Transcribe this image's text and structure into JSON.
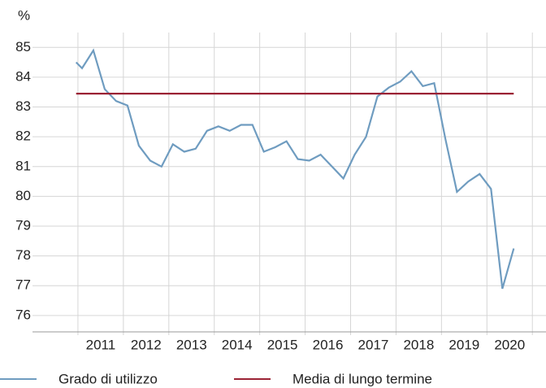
{
  "chart_data": {
    "type": "line",
    "y_unit": "%",
    "x": [
      2010.96,
      2011.09,
      2011.34,
      2011.59,
      2011.84,
      2012.09,
      2012.34,
      2012.59,
      2012.84,
      2013.09,
      2013.34,
      2013.59,
      2013.84,
      2014.09,
      2014.34,
      2014.59,
      2014.84,
      2015.09,
      2015.34,
      2015.59,
      2015.84,
      2016.09,
      2016.34,
      2016.59,
      2016.84,
      2017.09,
      2017.34,
      2017.59,
      2017.84,
      2018.09,
      2018.34,
      2018.59,
      2018.84,
      2019.09,
      2019.34,
      2019.59,
      2019.84,
      2020.09,
      2020.34,
      2020.59
    ],
    "series": [
      {
        "name": "Grado di utilizzo",
        "color": "#6f9cc0",
        "values": [
          84.5,
          84.3,
          84.9,
          83.6,
          83.2,
          83.05,
          81.7,
          81.2,
          81.0,
          81.75,
          81.5,
          81.6,
          82.2,
          82.35,
          82.2,
          82.4,
          82.4,
          81.5,
          81.65,
          81.85,
          81.25,
          81.2,
          81.4,
          81.0,
          80.6,
          81.4,
          82.0,
          83.35,
          83.65,
          83.85,
          84.2,
          83.7,
          83.8,
          81.9,
          80.15,
          80.5,
          80.75,
          80.25,
          76.9,
          78.25
        ]
      },
      {
        "name": "Media di lungo termine",
        "color": "#9b2335",
        "x": [
          2010.96,
          2020.59
        ],
        "values": [
          83.45,
          83.45
        ]
      }
    ],
    "xlim": [
      2010.0,
      2021.3
    ],
    "xgrid": [
      2011,
      2012,
      2013,
      2014,
      2015,
      2016,
      2017,
      2018,
      2019,
      2020,
      2021
    ],
    "xticks": [
      {
        "value": 2011.5,
        "label": "2011"
      },
      {
        "value": 2012.5,
        "label": "2012"
      },
      {
        "value": 2013.5,
        "label": "2013"
      },
      {
        "value": 2014.5,
        "label": "2014"
      },
      {
        "value": 2015.5,
        "label": "2015"
      },
      {
        "value": 2016.5,
        "label": "2016"
      },
      {
        "value": 2017.5,
        "label": "2017"
      },
      {
        "value": 2018.5,
        "label": "2018"
      },
      {
        "value": 2019.5,
        "label": "2019"
      },
      {
        "value": 2020.5,
        "label": "2020"
      }
    ],
    "ylim": [
      75.45,
      85.5
    ],
    "yticks": [
      76,
      77,
      78,
      79,
      80,
      81,
      82,
      83,
      84,
      85
    ],
    "grid": true,
    "legend": "bottom"
  }
}
